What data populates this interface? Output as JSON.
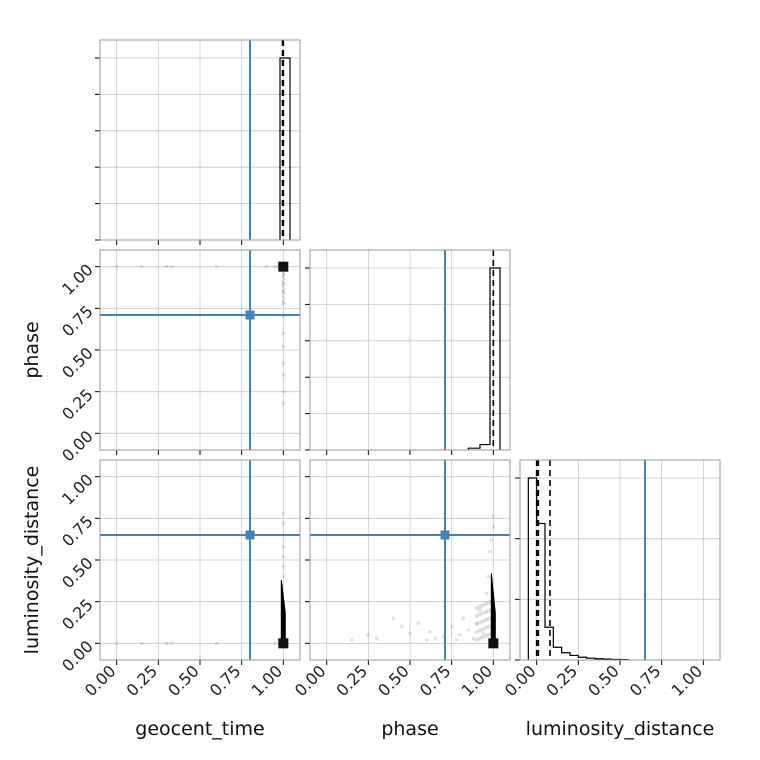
{
  "chart_data": {
    "type": "corner",
    "parameters": [
      "geocent_time",
      "phase",
      "luminosity_distance"
    ],
    "tick_labels": [
      "0.00",
      "0.25",
      "0.50",
      "0.75",
      "1.00"
    ],
    "axis_range": [
      -0.1,
      1.1
    ],
    "grid": true,
    "truth_color": "#4682b4",
    "truths": {
      "geocent_time": 0.8,
      "phase": 0.71,
      "luminosity_distance": 0.65
    },
    "histograms": [
      {
        "parameter": "geocent_time",
        "bin_edges": [
          0.98,
          1.04
        ],
        "counts": [
          1.0
        ],
        "quantiles": [
          0.995,
          1.0
        ]
      },
      {
        "parameter": "phase",
        "bin_edges": [
          0.85,
          0.92,
          0.98,
          1.04
        ],
        "counts": [
          0.01,
          0.03,
          1.0
        ],
        "quantiles": [
          1.0
        ]
      },
      {
        "parameter": "luminosity_distance",
        "bin_edges": [
          -0.05,
          0.0,
          0.05,
          0.1,
          0.15,
          0.2,
          0.25,
          0.3,
          0.35,
          0.4,
          0.45,
          0.5,
          0.55
        ],
        "counts": [
          1.0,
          0.75,
          0.18,
          0.07,
          0.04,
          0.025,
          0.015,
          0.01,
          0.007,
          0.005,
          0.003,
          0.002
        ],
        "quantiles": [
          0.0,
          0.01,
          0.08
        ]
      }
    ],
    "scatter": [
      {
        "x": "geocent_time",
        "y": "phase",
        "points": [
          [
            0.0,
            1.0
          ],
          [
            0.15,
            1.0
          ],
          [
            0.3,
            1.0
          ],
          [
            0.33,
            1.0
          ],
          [
            0.6,
            1.0
          ],
          [
            0.9,
            1.0
          ],
          [
            0.95,
            1.0
          ],
          [
            0.97,
            1.0
          ],
          [
            1.0,
            0.95
          ],
          [
            1.0,
            0.9
          ],
          [
            1.0,
            0.85
          ],
          [
            1.0,
            0.78
          ],
          [
            1.0,
            0.7
          ],
          [
            1.0,
            0.6
          ],
          [
            1.0,
            0.52
          ],
          [
            1.0,
            0.42
          ],
          [
            1.0,
            0.35
          ],
          [
            1.0,
            0.25
          ],
          [
            1.0,
            0.18
          ]
        ],
        "density_peak": [
          1.0,
          1.0
        ]
      },
      {
        "x": "geocent_time",
        "y": "luminosity_distance",
        "points": [
          [
            0.0,
            0.0
          ],
          [
            0.15,
            0.0
          ],
          [
            0.3,
            0.0
          ],
          [
            0.33,
            0.0
          ],
          [
            0.6,
            0.0
          ],
          [
            0.95,
            0.0
          ],
          [
            0.97,
            0.02
          ],
          [
            1.0,
            0.78
          ],
          [
            1.0,
            0.72
          ],
          [
            1.0,
            0.65
          ],
          [
            1.0,
            0.58
          ],
          [
            1.0,
            0.52
          ],
          [
            1.0,
            0.46
          ],
          [
            1.0,
            0.4
          ]
        ],
        "density_peak": [
          1.0,
          0.0
        ]
      },
      {
        "x": "phase",
        "y": "luminosity_distance",
        "points": [
          [
            0.15,
            0.02
          ],
          [
            0.25,
            0.05
          ],
          [
            0.3,
            0.03
          ],
          [
            0.4,
            0.15
          ],
          [
            0.45,
            0.1
          ],
          [
            0.5,
            0.06
          ],
          [
            0.55,
            0.12
          ],
          [
            0.6,
            0.02
          ],
          [
            0.62,
            0.07
          ],
          [
            0.65,
            0.03
          ],
          [
            0.7,
            0.04
          ],
          [
            0.75,
            0.1
          ],
          [
            0.78,
            0.02
          ],
          [
            0.8,
            0.05
          ],
          [
            0.82,
            0.15
          ],
          [
            0.85,
            0.08
          ],
          [
            0.88,
            0.03
          ],
          [
            0.9,
            0.12
          ],
          [
            0.92,
            0.2
          ],
          [
            0.94,
            0.06
          ],
          [
            0.96,
            0.3
          ],
          [
            0.97,
            0.4
          ],
          [
            0.98,
            0.55
          ],
          [
            1.0,
            0.7
          ],
          [
            1.0,
            0.76
          ],
          [
            0.99,
            0.62
          ]
        ],
        "density_peak": [
          1.0,
          0.0
        ]
      }
    ]
  }
}
